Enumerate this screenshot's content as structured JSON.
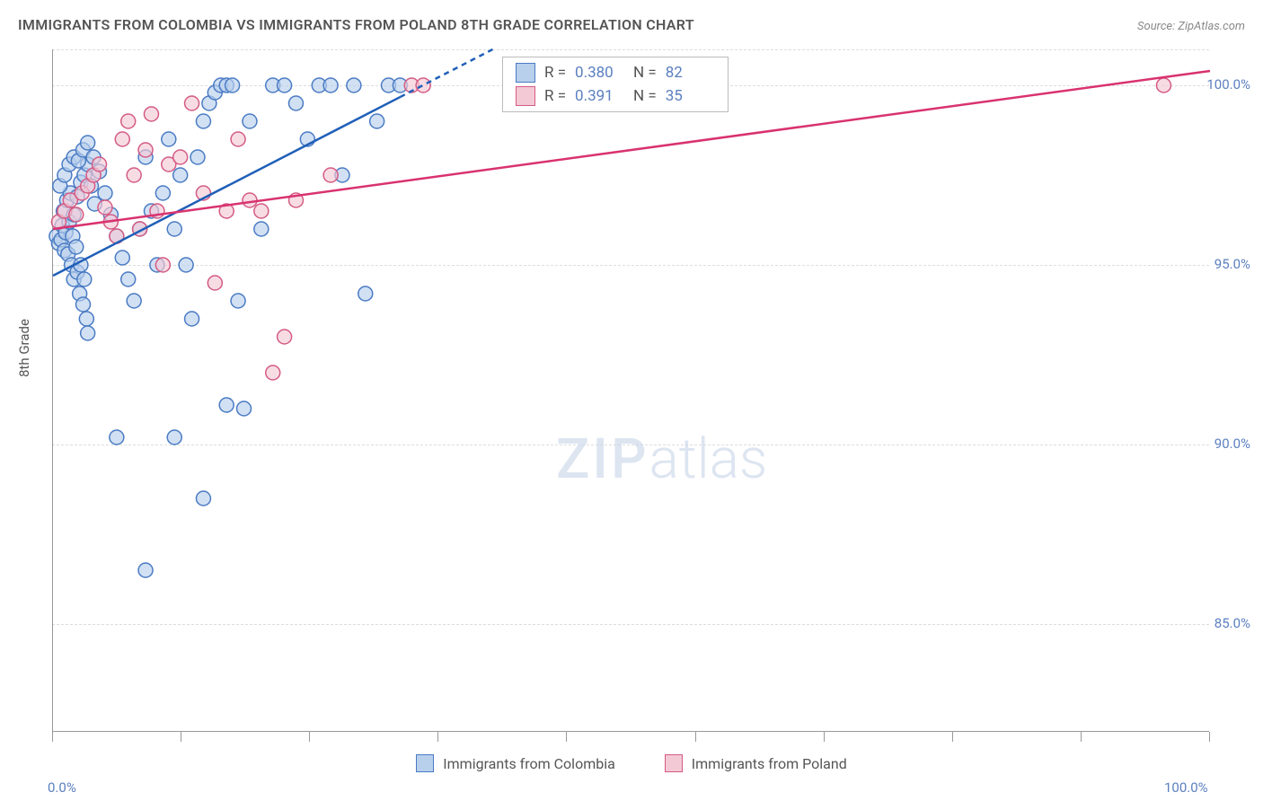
{
  "title": "IMMIGRANTS FROM COLOMBIA VS IMMIGRANTS FROM POLAND 8TH GRADE CORRELATION CHART",
  "source": "Source: ZipAtlas.com",
  "ylabel": "8th Grade",
  "watermark_zip": "ZIP",
  "watermark_atlas": "atlas",
  "chart": {
    "type": "scatter",
    "xlim": [
      0,
      100
    ],
    "ylim": [
      82,
      101
    ],
    "x_ticks": [
      0,
      11.1,
      22.2,
      33.3,
      44.4,
      55.6,
      66.7,
      77.8,
      88.9,
      100
    ],
    "x_tick_labels": {
      "0": "0.0%",
      "100": "100.0%"
    },
    "y_ticks": [
      85,
      90,
      95,
      100
    ],
    "y_tick_labels": {
      "85": "85.0%",
      "90": "90.0%",
      "95": "95.0%",
      "100": "100.0%"
    },
    "background_color": "#ffffff",
    "grid_color": "#dddddd",
    "marker_radius": 8,
    "marker_stroke_width": 1.5,
    "trend_line_width": 2.5,
    "series": [
      {
        "name": "Immigrants from Colombia",
        "fill": "#b8d0ec",
        "stroke": "#4a7bc4",
        "line_color": "#1f5fb8",
        "r": "0.380",
        "n": "82",
        "trend": {
          "x1": 0,
          "y1": 94.7,
          "x2": 38,
          "y2": 101,
          "dash_from_x": 30
        },
        "points": [
          [
            0.3,
            95.8
          ],
          [
            0.5,
            95.6
          ],
          [
            0.7,
            95.7
          ],
          [
            0.8,
            96.1
          ],
          [
            1.0,
            95.4
          ],
          [
            1.1,
            95.9
          ],
          [
            1.3,
            95.3
          ],
          [
            1.4,
            96.2
          ],
          [
            1.6,
            95.0
          ],
          [
            1.7,
            95.8
          ],
          [
            1.8,
            94.6
          ],
          [
            2.0,
            95.5
          ],
          [
            2.1,
            94.8
          ],
          [
            2.3,
            94.2
          ],
          [
            2.4,
            95.0
          ],
          [
            2.6,
            93.9
          ],
          [
            2.7,
            94.6
          ],
          [
            2.9,
            93.5
          ],
          [
            3.0,
            93.1
          ],
          [
            0.9,
            96.5
          ],
          [
            1.2,
            96.8
          ],
          [
            1.5,
            97.0
          ],
          [
            1.8,
            96.4
          ],
          [
            2.1,
            96.9
          ],
          [
            2.4,
            97.3
          ],
          [
            2.7,
            97.5
          ],
          [
            3.0,
            97.8
          ],
          [
            3.3,
            97.2
          ],
          [
            3.6,
            96.7
          ],
          [
            0.6,
            97.2
          ],
          [
            1.0,
            97.5
          ],
          [
            1.4,
            97.8
          ],
          [
            1.8,
            98.0
          ],
          [
            2.2,
            97.9
          ],
          [
            2.6,
            98.2
          ],
          [
            3.0,
            98.4
          ],
          [
            3.5,
            98.0
          ],
          [
            4.0,
            97.6
          ],
          [
            4.5,
            97.0
          ],
          [
            5.0,
            96.4
          ],
          [
            5.5,
            95.8
          ],
          [
            6.0,
            95.2
          ],
          [
            6.5,
            94.6
          ],
          [
            7.0,
            94.0
          ],
          [
            7.5,
            96.0
          ],
          [
            8.0,
            98.0
          ],
          [
            8.5,
            96.5
          ],
          [
            9.0,
            95.0
          ],
          [
            9.5,
            97.0
          ],
          [
            10.0,
            98.5
          ],
          [
            10.5,
            96.0
          ],
          [
            11.0,
            97.5
          ],
          [
            11.5,
            95.0
          ],
          [
            12.0,
            93.5
          ],
          [
            12.5,
            98.0
          ],
          [
            13.0,
            99.0
          ],
          [
            13.5,
            99.5
          ],
          [
            14.0,
            99.8
          ],
          [
            14.5,
            100.0
          ],
          [
            15.0,
            100.0
          ],
          [
            15.5,
            100.0
          ],
          [
            16.0,
            94.0
          ],
          [
            16.5,
            91.0
          ],
          [
            17.0,
            99.0
          ],
          [
            18.0,
            96.0
          ],
          [
            19.0,
            100.0
          ],
          [
            20.0,
            100.0
          ],
          [
            21.0,
            99.5
          ],
          [
            22.0,
            98.5
          ],
          [
            23.0,
            100.0
          ],
          [
            24.0,
            100.0
          ],
          [
            25.0,
            97.5
          ],
          [
            26.0,
            100.0
          ],
          [
            27.0,
            94.2
          ],
          [
            28.0,
            99.0
          ],
          [
            29.0,
            100.0
          ],
          [
            30.0,
            100.0
          ],
          [
            8.0,
            86.5
          ],
          [
            13.0,
            88.5
          ],
          [
            10.5,
            90.2
          ],
          [
            5.5,
            90.2
          ],
          [
            15.0,
            91.1
          ]
        ]
      },
      {
        "name": "Immigrants from Poland",
        "fill": "#f4c9d6",
        "stroke": "#d45b84",
        "line_color": "#d9326f",
        "r": "0.391",
        "n": "35",
        "trend": {
          "x1": 0,
          "y1": 96.0,
          "x2": 100,
          "y2": 100.4
        },
        "points": [
          [
            0.5,
            96.2
          ],
          [
            1.0,
            96.5
          ],
          [
            1.5,
            96.8
          ],
          [
            2.0,
            96.4
          ],
          [
            2.5,
            97.0
          ],
          [
            3.0,
            97.2
          ],
          [
            3.5,
            97.5
          ],
          [
            4.0,
            97.8
          ],
          [
            4.5,
            96.6
          ],
          [
            5.0,
            96.2
          ],
          [
            5.5,
            95.8
          ],
          [
            6.0,
            98.5
          ],
          [
            6.5,
            99.0
          ],
          [
            7.0,
            97.5
          ],
          [
            7.5,
            96.0
          ],
          [
            8.0,
            98.2
          ],
          [
            8.5,
            99.2
          ],
          [
            9.0,
            96.5
          ],
          [
            9.5,
            95.0
          ],
          [
            10.0,
            97.8
          ],
          [
            11.0,
            98.0
          ],
          [
            12.0,
            99.5
          ],
          [
            13.0,
            97.0
          ],
          [
            14.0,
            94.5
          ],
          [
            15.0,
            96.5
          ],
          [
            16.0,
            98.5
          ],
          [
            17.0,
            96.8
          ],
          [
            18.0,
            96.5
          ],
          [
            19.0,
            92.0
          ],
          [
            20.0,
            93.0
          ],
          [
            21.0,
            96.8
          ],
          [
            24.0,
            97.5
          ],
          [
            31.0,
            100.0
          ],
          [
            32.0,
            100.0
          ],
          [
            96.0,
            100.0
          ]
        ]
      }
    ]
  },
  "legend_labels": {
    "r_prefix": "R =",
    "n_prefix": "N ="
  }
}
